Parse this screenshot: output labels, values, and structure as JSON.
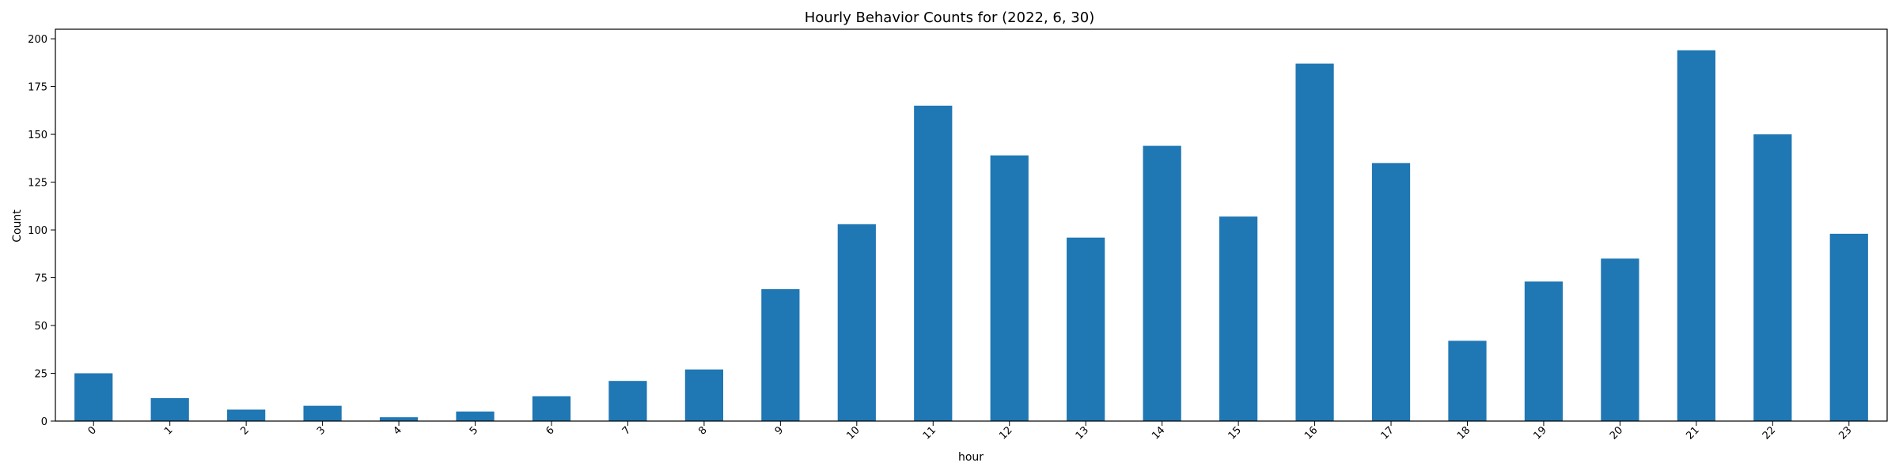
{
  "chart_data": {
    "type": "bar",
    "title": "Hourly Behavior Counts for (2022, 6, 30)",
    "xlabel": "hour",
    "ylabel": "Count",
    "categories": [
      "0",
      "1",
      "2",
      "3",
      "4",
      "5",
      "6",
      "7",
      "8",
      "9",
      "10",
      "11",
      "12",
      "13",
      "14",
      "15",
      "16",
      "17",
      "18",
      "19",
      "20",
      "21",
      "22",
      "23"
    ],
    "values": [
      25,
      12,
      6,
      8,
      2,
      5,
      13,
      21,
      27,
      69,
      103,
      165,
      139,
      96,
      144,
      107,
      187,
      135,
      42,
      73,
      85,
      194,
      150,
      98
    ],
    "ylim": [
      0,
      205
    ],
    "yticks": [
      0,
      25,
      50,
      75,
      100,
      125,
      150,
      175,
      200
    ],
    "bar_color": "#1f77b4",
    "grid": false,
    "legend": "none"
  }
}
